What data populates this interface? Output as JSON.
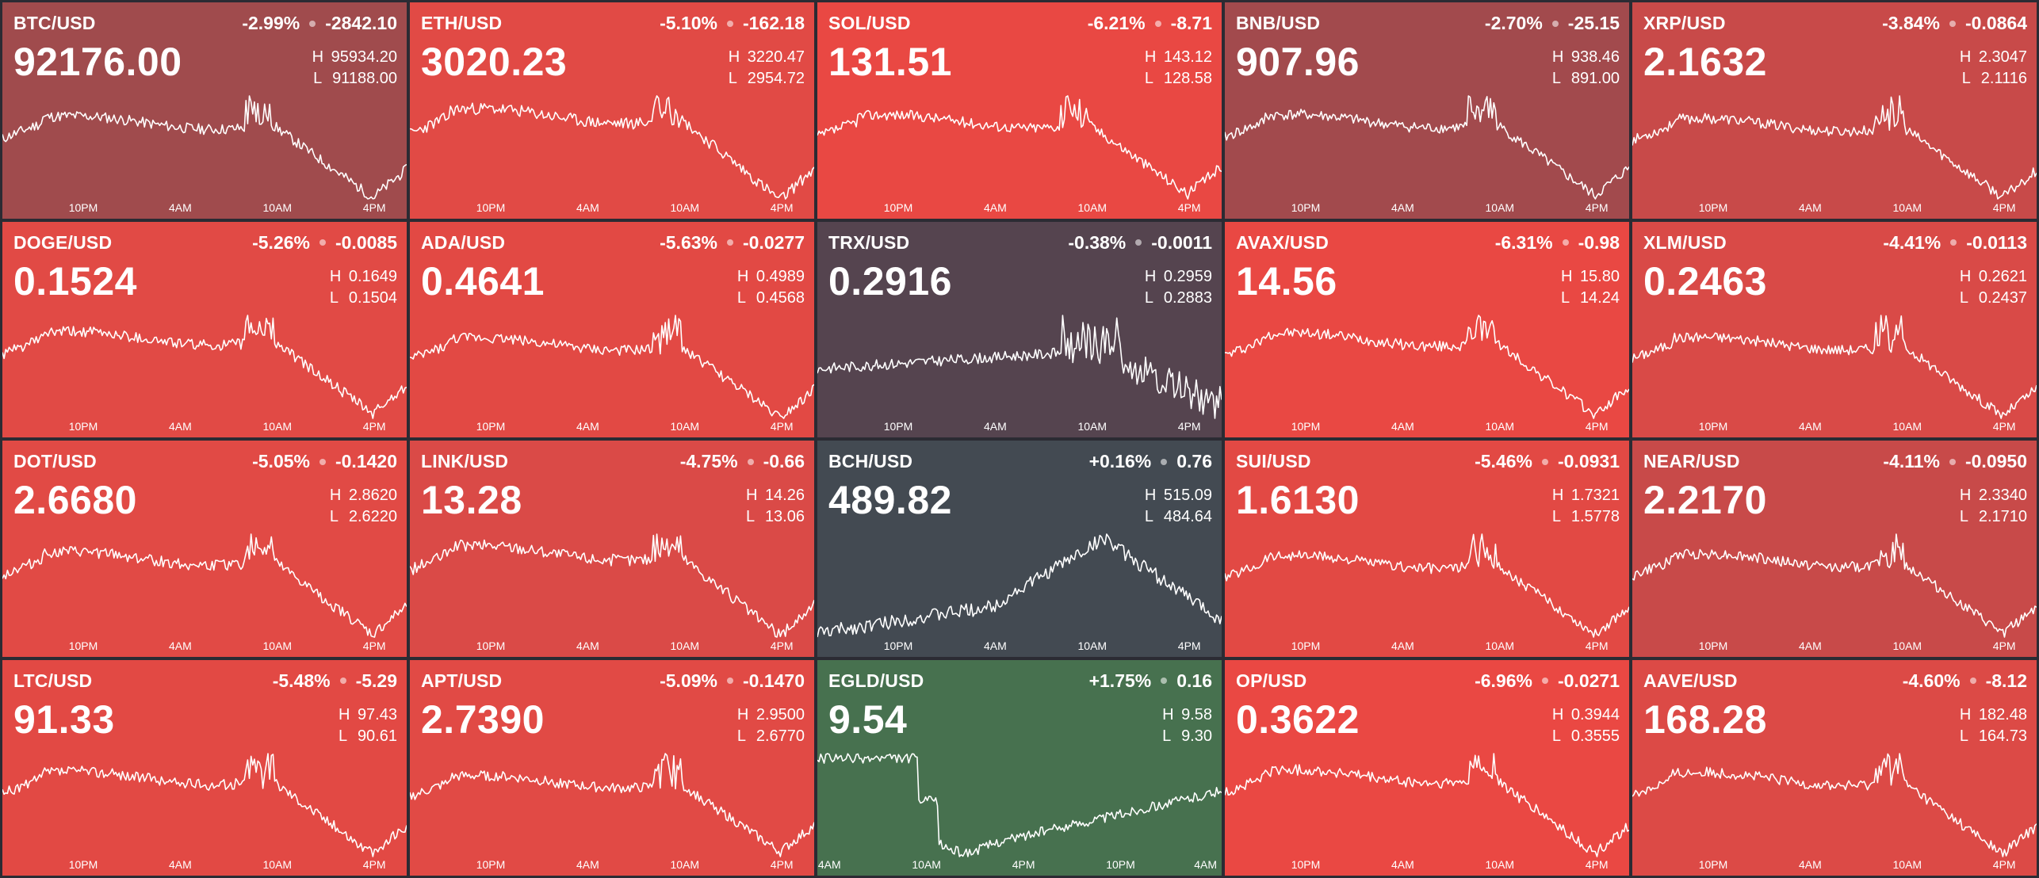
{
  "tiles": [
    {
      "pair": "BTC/USD",
      "pct": "-2.99%",
      "abs": "-2842.10",
      "price": "92176.00",
      "high": "95934.20",
      "low": "91188.00",
      "bg": "#a04b4d",
      "seed": 11,
      "pattern": "down",
      "times": [
        "10PM",
        "4AM",
        "10AM",
        "4PM"
      ]
    },
    {
      "pair": "ETH/USD",
      "pct": "-5.10%",
      "abs": "-162.18",
      "price": "3020.23",
      "high": "3220.47",
      "low": "2954.72",
      "bg": "#e14a45",
      "seed": 23,
      "pattern": "down",
      "times": [
        "10PM",
        "4AM",
        "10AM",
        "4PM"
      ]
    },
    {
      "pair": "SOL/USD",
      "pct": "-6.21%",
      "abs": "-8.71",
      "price": "131.51",
      "high": "143.12",
      "low": "128.58",
      "bg": "#e94843",
      "seed": 37,
      "pattern": "down",
      "times": [
        "10PM",
        "4AM",
        "10AM",
        "4PM"
      ]
    },
    {
      "pair": "BNB/USD",
      "pct": "-2.70%",
      "abs": "-25.15",
      "price": "907.96",
      "high": "938.46",
      "low": "891.00",
      "bg": "#a24a4d",
      "seed": 41,
      "pattern": "down",
      "times": [
        "10PM",
        "4AM",
        "10AM",
        "4PM"
      ]
    },
    {
      "pair": "XRP/USD",
      "pct": "-3.84%",
      "abs": "-0.0864",
      "price": "2.1632",
      "high": "2.3047",
      "low": "2.1116",
      "bg": "#c84a49",
      "seed": 53,
      "pattern": "down",
      "times": [
        "10PM",
        "4AM",
        "10AM",
        "4PM"
      ]
    },
    {
      "pair": "DOGE/USD",
      "pct": "-5.26%",
      "abs": "-0.0085",
      "price": "0.1524",
      "high": "0.1649",
      "low": "0.1504",
      "bg": "#e14a45",
      "seed": 61,
      "pattern": "down",
      "times": [
        "10PM",
        "4AM",
        "10AM",
        "4PM"
      ]
    },
    {
      "pair": "ADA/USD",
      "pct": "-5.63%",
      "abs": "-0.0277",
      "price": "0.4641",
      "high": "0.4989",
      "low": "0.4568",
      "bg": "#e24944",
      "seed": 73,
      "pattern": "down",
      "times": [
        "10PM",
        "4AM",
        "10AM",
        "4PM"
      ]
    },
    {
      "pair": "TRX/USD",
      "pct": "-0.38%",
      "abs": "-0.0011",
      "price": "0.2916",
      "high": "0.2959",
      "low": "0.2883",
      "bg": "#55444f",
      "seed": 83,
      "pattern": "flat",
      "times": [
        "10PM",
        "4AM",
        "10AM",
        "4PM"
      ]
    },
    {
      "pair": "AVAX/USD",
      "pct": "-6.31%",
      "abs": "-0.98",
      "price": "14.56",
      "high": "15.80",
      "low": "14.24",
      "bg": "#e94843",
      "seed": 97,
      "pattern": "down",
      "times": [
        "10PM",
        "4AM",
        "10AM",
        "4PM"
      ]
    },
    {
      "pair": "XLM/USD",
      "pct": "-4.41%",
      "abs": "-0.0113",
      "price": "0.2463",
      "high": "0.2621",
      "low": "0.2437",
      "bg": "#d94a47",
      "seed": 101,
      "pattern": "down",
      "times": [
        "10PM",
        "4AM",
        "10AM",
        "4PM"
      ]
    },
    {
      "pair": "DOT/USD",
      "pct": "-5.05%",
      "abs": "-0.1420",
      "price": "2.6680",
      "high": "2.8620",
      "low": "2.6220",
      "bg": "#e14a45",
      "seed": 113,
      "pattern": "down",
      "times": [
        "10PM",
        "4AM",
        "10AM",
        "4PM"
      ]
    },
    {
      "pair": "LINK/USD",
      "pct": "-4.75%",
      "abs": "-0.66",
      "price": "13.28",
      "high": "14.26",
      "low": "13.06",
      "bg": "#da4a47",
      "seed": 127,
      "pattern": "down",
      "times": [
        "10PM",
        "4AM",
        "10AM",
        "4PM"
      ]
    },
    {
      "pair": "BCH/USD",
      "pct": "+0.16%",
      "abs": "0.76",
      "price": "489.82",
      "high": "515.09",
      "low": "484.64",
      "bg": "#434a52",
      "seed": 131,
      "pattern": "up",
      "times": [
        "10PM",
        "4AM",
        "10AM",
        "4PM"
      ]
    },
    {
      "pair": "SUI/USD",
      "pct": "-5.46%",
      "abs": "-0.0931",
      "price": "1.6130",
      "high": "1.7321",
      "low": "1.5778",
      "bg": "#e24944",
      "seed": 139,
      "pattern": "down",
      "times": [
        "10PM",
        "4AM",
        "10AM",
        "4PM"
      ]
    },
    {
      "pair": "NEAR/USD",
      "pct": "-4.11%",
      "abs": "-0.0950",
      "price": "2.2170",
      "high": "2.3340",
      "low": "2.1710",
      "bg": "#c84a49",
      "seed": 149,
      "pattern": "down",
      "times": [
        "10PM",
        "4AM",
        "10AM",
        "4PM"
      ]
    },
    {
      "pair": "LTC/USD",
      "pct": "-5.48%",
      "abs": "-5.29",
      "price": "91.33",
      "high": "97.43",
      "low": "90.61",
      "bg": "#e24944",
      "seed": 157,
      "pattern": "down",
      "times": [
        "10PM",
        "4AM",
        "10AM",
        "4PM"
      ]
    },
    {
      "pair": "APT/USD",
      "pct": "-5.09%",
      "abs": "-0.1470",
      "price": "2.7390",
      "high": "2.9500",
      "low": "2.6770",
      "bg": "#e14a45",
      "seed": 163,
      "pattern": "down",
      "times": [
        "10PM",
        "4AM",
        "10AM",
        "4PM"
      ]
    },
    {
      "pair": "EGLD/USD",
      "pct": "+1.75%",
      "abs": "0.16",
      "price": "9.54",
      "high": "9.58",
      "low": "9.30",
      "bg": "#47714f",
      "seed": 173,
      "pattern": "step",
      "times": [
        "4AM",
        "10AM",
        "4PM",
        "10PM",
        "4AM"
      ]
    },
    {
      "pair": "OP/USD",
      "pct": "-6.96%",
      "abs": "-0.0271",
      "price": "0.3622",
      "high": "0.3944",
      "low": "0.3555",
      "bg": "#ea4843",
      "seed": 179,
      "pattern": "down",
      "times": [
        "10PM",
        "4AM",
        "10AM",
        "4PM"
      ]
    },
    {
      "pair": "AAVE/USD",
      "pct": "-4.60%",
      "abs": "-8.12",
      "price": "168.28",
      "high": "182.48",
      "low": "164.73",
      "bg": "#dc4a46",
      "seed": 191,
      "pattern": "down",
      "times": [
        "10PM",
        "4AM",
        "10AM",
        "4PM"
      ]
    }
  ],
  "labels": {
    "high": "H",
    "low": "L"
  }
}
